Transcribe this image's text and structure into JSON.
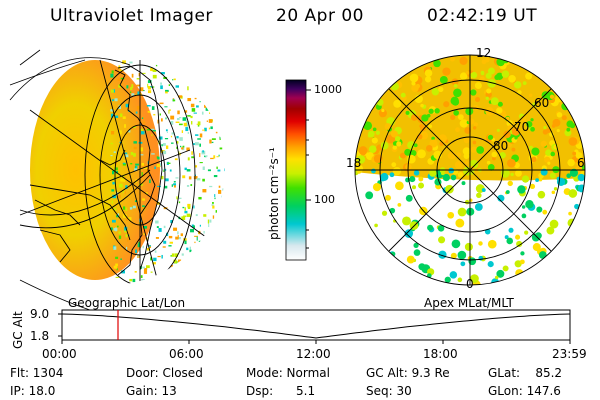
{
  "header": {
    "instrument": "Ultraviolet Imager",
    "date": "20 Apr 00",
    "time": "02:42:19 UT"
  },
  "colorbar": {
    "label": "photon cm⁻²s⁻¹",
    "ticks": [
      "1000",
      "100"
    ],
    "colors": [
      "#ffffff",
      "#d8e8ee",
      "#00c8d0",
      "#00d060",
      "#40e000",
      "#c8f000",
      "#ffe000",
      "#ffa000",
      "#ff5000",
      "#e00000",
      "#a00000",
      "#a00050",
      "#400060",
      "#000020"
    ]
  },
  "polar": {
    "mlt_labels": [
      "12",
      "18",
      "6",
      "0"
    ],
    "lat_labels": [
      "60",
      "70",
      "80"
    ]
  },
  "projections": {
    "left": "Geographic Lat/Lon",
    "right": "Apex MLat/MLT"
  },
  "altitude_plot": {
    "axis_label": "GC Alt",
    "y_ticks": [
      "9.0",
      "1.8"
    ],
    "x_ticks": [
      "00:00",
      "06:00",
      "12:00",
      "18:00",
      "23:59"
    ]
  },
  "info": {
    "flt": "Flt: 1304",
    "ip": "IP: 18.0",
    "door": "Door: Closed",
    "gain": "Gain: 13",
    "mode": "Mode: Normal",
    "dsp": "Dsp:      5.1",
    "gcalt": "GC Alt: 9.3 Re",
    "seq": "Seq: 30",
    "glat": "GLat:    85.2",
    "glon": "GLon: 147.6"
  }
}
